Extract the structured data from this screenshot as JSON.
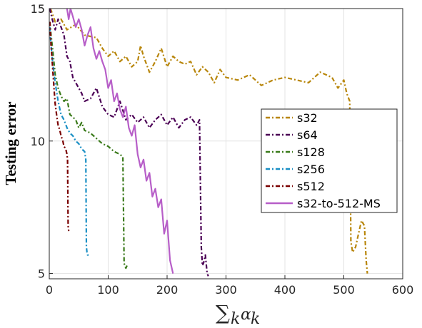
{
  "chart_data": {
    "type": "line",
    "title": "",
    "xlabel": "∑k αk",
    "ylabel": "Testing error",
    "xlim": [
      0,
      600
    ],
    "ylim": [
      4.8,
      15
    ],
    "xticks": [
      0,
      100,
      200,
      300,
      400,
      500,
      600
    ],
    "yticks": [
      5,
      10,
      15
    ],
    "grid": true,
    "legend_position": "center-right",
    "series": [
      {
        "name": "s32",
        "color": "#b8860b",
        "dash": "6,3,2,3",
        "x": [
          2,
          10,
          20,
          30,
          45,
          60,
          80,
          90,
          100,
          110,
          120,
          130,
          140,
          150,
          155,
          160,
          170,
          180,
          190,
          200,
          210,
          220,
          230,
          240,
          250,
          260,
          270,
          280,
          290,
          300,
          320,
          340,
          360,
          380,
          400,
          420,
          440,
          460,
          480,
          490,
          500,
          505,
          510,
          512,
          515,
          520,
          525,
          530,
          535,
          538,
          540
        ],
        "y": [
          15,
          14.5,
          14.6,
          14.2,
          14.4,
          14.0,
          13.9,
          13.5,
          13.2,
          13.4,
          13.0,
          13.2,
          12.8,
          13.0,
          13.6,
          13.2,
          12.6,
          13.0,
          13.5,
          12.8,
          13.2,
          13.0,
          12.9,
          13.0,
          12.5,
          12.8,
          12.6,
          12.2,
          12.7,
          12.4,
          12.3,
          12.5,
          12.1,
          12.3,
          12.4,
          12.3,
          12.2,
          12.6,
          12.4,
          12.0,
          12.3,
          11.8,
          11.5,
          6.2,
          5.8,
          6.0,
          6.5,
          7.0,
          6.8,
          5.5,
          5.0
        ]
      },
      {
        "name": "s64",
        "color": "#4b0055",
        "dash": "6,3,2,3",
        "x": [
          1,
          5,
          10,
          15,
          20,
          25,
          30,
          35,
          40,
          45,
          50,
          55,
          60,
          70,
          80,
          90,
          100,
          110,
          120,
          130,
          140,
          150,
          160,
          170,
          180,
          190,
          200,
          210,
          220,
          230,
          240,
          250,
          255,
          258,
          260,
          262,
          265,
          268,
          270
        ],
        "y": [
          15,
          14.6,
          14.2,
          14.6,
          14.3,
          14.0,
          13.2,
          13.0,
          12.4,
          12.2,
          12.0,
          11.8,
          11.5,
          11.6,
          12.0,
          11.3,
          11.0,
          10.9,
          11.5,
          10.8,
          11.0,
          10.7,
          10.9,
          10.5,
          10.8,
          11.0,
          10.6,
          10.9,
          10.5,
          10.8,
          10.9,
          10.6,
          10.8,
          6.0,
          5.3,
          5.4,
          5.7,
          5.0,
          4.9
        ]
      },
      {
        "name": "s128",
        "color": "#3a7a1a",
        "dash": "6,3,2,3",
        "x": [
          1,
          3,
          6,
          10,
          15,
          20,
          25,
          30,
          35,
          40,
          45,
          50,
          55,
          60,
          70,
          80,
          90,
          100,
          110,
          120,
          125,
          127,
          128,
          130,
          132
        ],
        "y": [
          14.5,
          14.0,
          13.4,
          12.5,
          12.0,
          11.7,
          11.5,
          11.6,
          11.0,
          10.9,
          10.8,
          10.5,
          10.7,
          10.4,
          10.3,
          10.1,
          9.9,
          9.8,
          9.6,
          9.5,
          9.4,
          5.4,
          5.3,
          5.2,
          5.3
        ]
      },
      {
        "name": "s256",
        "color": "#1a8fc4",
        "dash": "6,3,2,3",
        "x": [
          1,
          3,
          6,
          10,
          15,
          20,
          25,
          30,
          35,
          40,
          45,
          50,
          55,
          60,
          62,
          63,
          64,
          65,
          67
        ],
        "y": [
          14.3,
          13.6,
          12.9,
          12.2,
          11.5,
          11.0,
          10.8,
          10.5,
          10.3,
          10.2,
          10.0,
          9.9,
          9.7,
          9.6,
          9.3,
          6.0,
          5.8,
          5.7,
          5.7
        ]
      },
      {
        "name": "s512",
        "color": "#7a0000",
        "dash": "6,3,2,3",
        "x": [
          1,
          3,
          5,
          8,
          10,
          13,
          15,
          18,
          20,
          23,
          25,
          28,
          30,
          31,
          32,
          33
        ],
        "y": [
          14.5,
          13.6,
          13.0,
          12.0,
          11.4,
          10.9,
          10.6,
          10.4,
          10.2,
          10.0,
          9.8,
          9.7,
          9.5,
          9.3,
          6.8,
          6.6
        ]
      },
      {
        "name": "s32-to-512-MS",
        "color": "#b75ec8",
        "dash": "",
        "x": [
          30,
          33,
          36,
          40,
          45,
          50,
          55,
          60,
          65,
          70,
          75,
          80,
          85,
          90,
          95,
          100,
          105,
          110,
          115,
          120,
          125,
          130,
          135,
          140,
          145,
          150,
          155,
          160,
          165,
          170,
          175,
          180,
          185,
          190,
          195,
          200,
          205,
          210
        ],
        "y": [
          15.0,
          14.6,
          15.0,
          14.7,
          14.3,
          14.6,
          14.2,
          13.6,
          14.0,
          14.3,
          13.5,
          13.1,
          13.4,
          13.0,
          12.7,
          12.0,
          12.3,
          11.5,
          11.8,
          11.2,
          10.9,
          11.3,
          10.5,
          10.2,
          10.6,
          9.5,
          9.0,
          9.3,
          8.5,
          8.8,
          7.9,
          8.2,
          7.5,
          7.8,
          6.5,
          7.0,
          5.5,
          5.0
        ]
      }
    ]
  }
}
